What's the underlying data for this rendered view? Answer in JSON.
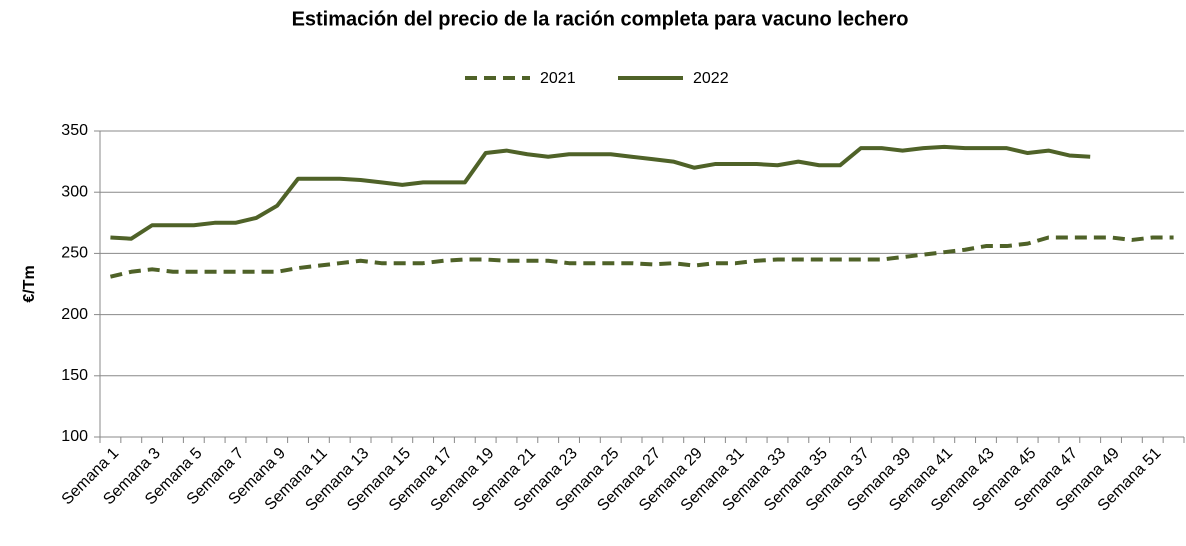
{
  "chart_data": {
    "type": "line",
    "title": "Estimación del precio de la ración completa para vacuno lechero",
    "y_label": "€/Tm",
    "categories": [
      "Semana 1",
      null,
      "Semana 3",
      null,
      "Semana 5",
      null,
      "Semana 7",
      null,
      "Semana 9",
      null,
      "Semana 11",
      null,
      "Semana 13",
      null,
      "Semana 15",
      null,
      "Semana 17",
      null,
      "Semana 19",
      null,
      "Semana 21",
      null,
      "Semana 23",
      null,
      "Semana 25",
      null,
      "Semana 27",
      null,
      "Semana 29",
      null,
      "Semana 31",
      null,
      "Semana 33",
      null,
      "Semana 35",
      null,
      "Semana 37",
      null,
      "Semana 39",
      null,
      "Semana 41",
      null,
      "Semana 43",
      null,
      "Semana 45",
      null,
      "Semana 47",
      null,
      "Semana 49",
      null,
      "Semana 51",
      null
    ],
    "series": [
      {
        "name": "2021",
        "color": "#4f6228",
        "dashed": true,
        "values": [
          231,
          235,
          237,
          235,
          235,
          235,
          235,
          235,
          235,
          238,
          240,
          242,
          244,
          242,
          242,
          242,
          244,
          245,
          245,
          244,
          244,
          244,
          242,
          242,
          242,
          242,
          241,
          242,
          240,
          242,
          242,
          244,
          245,
          245,
          245,
          245,
          245,
          245,
          247,
          249,
          251,
          253,
          256,
          256,
          258,
          263,
          263,
          263,
          263,
          261,
          263,
          263
        ]
      },
      {
        "name": "2022",
        "color": "#4f6228",
        "dashed": false,
        "values": [
          263,
          262,
          273,
          273,
          273,
          275,
          275,
          279,
          289,
          311,
          311,
          311,
          310,
          308,
          306,
          308,
          308,
          308,
          332,
          334,
          331,
          329,
          331,
          331,
          331,
          329,
          327,
          325,
          320,
          323,
          323,
          323,
          322,
          325,
          322,
          322,
          336,
          336,
          334,
          336,
          337,
          336,
          336,
          336,
          332,
          334,
          330,
          329,
          null,
          null,
          null,
          null
        ]
      }
    ],
    "ylim": [
      100,
      350
    ],
    "yticks": [
      100,
      150,
      200,
      250,
      300,
      350
    ],
    "grid": true,
    "legend": "top"
  }
}
